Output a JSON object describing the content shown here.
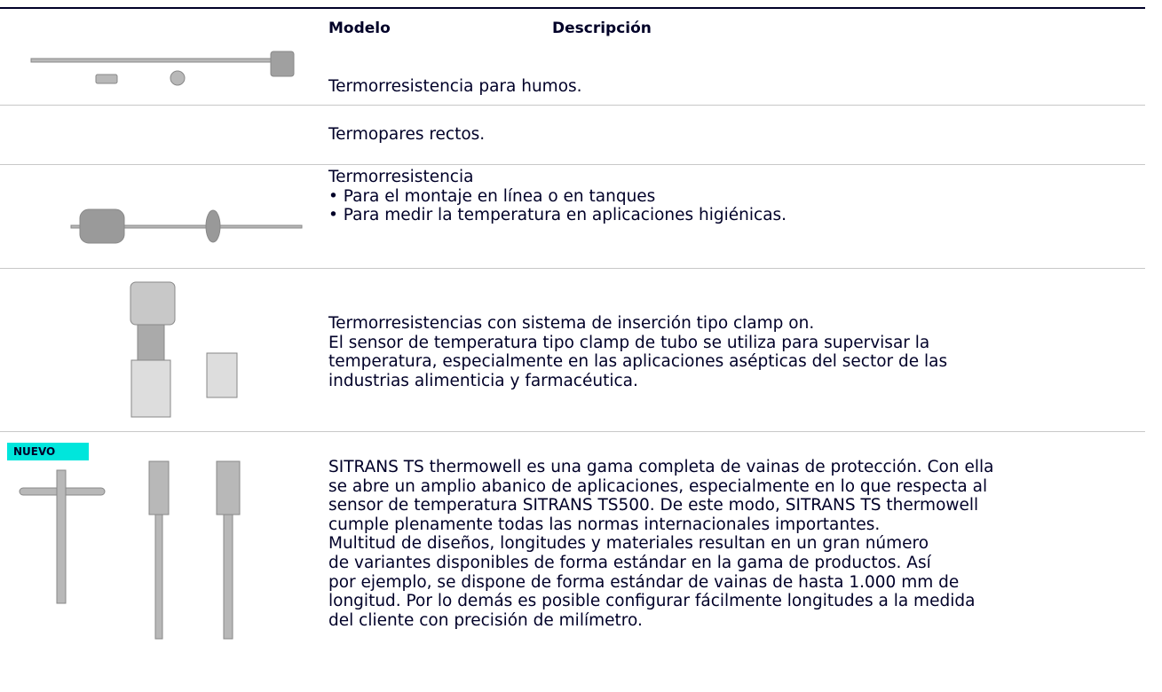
{
  "header": {
    "model": "Modelo",
    "description": "Descripción"
  },
  "rows": [
    {
      "lines": [
        "Termorresistencia para humos."
      ]
    },
    {
      "lines": [
        "Termopares rectos."
      ]
    },
    {
      "lines": [
        "Termorresistencia",
        "• Para el montaje en línea o en tanques",
        "• Para medir la temperatura en aplicaciones higiénicas."
      ]
    },
    {
      "lines": [
        "Termorresistencias con sistema de inserción tipo clamp on.",
        "El sensor de temperatura tipo clamp de tubo se utiliza para supervisar la",
        "temperatura, especialmente en las aplicaciones asépticas del sector de las",
        "industrias alimenticia y farmacéutica."
      ]
    },
    {
      "badge": "NUEVO",
      "lines": [
        "SITRANS TS thermowell es una gama completa de vainas de protección. Con ella",
        "se abre un amplio abanico de aplicaciones, especialmente en lo que respecta al",
        "sensor de temperatura SITRANS TS500. De este modo, SITRANS TS thermowell",
        "cumple plenamente todas las normas internacionales importantes.",
        "Multitud de diseños, longitudes y materiales resultan en un gran número",
        "de variantes disponibles de forma estándar en la gama de productos. Así",
        "por ejemplo, se dispone de forma estándar de vainas de hasta 1.000 mm de",
        "longitud. Por lo demás es posible configurar fácilmente longitudes a la medida",
        "del cliente con precisión de milímetro."
      ]
    }
  ]
}
